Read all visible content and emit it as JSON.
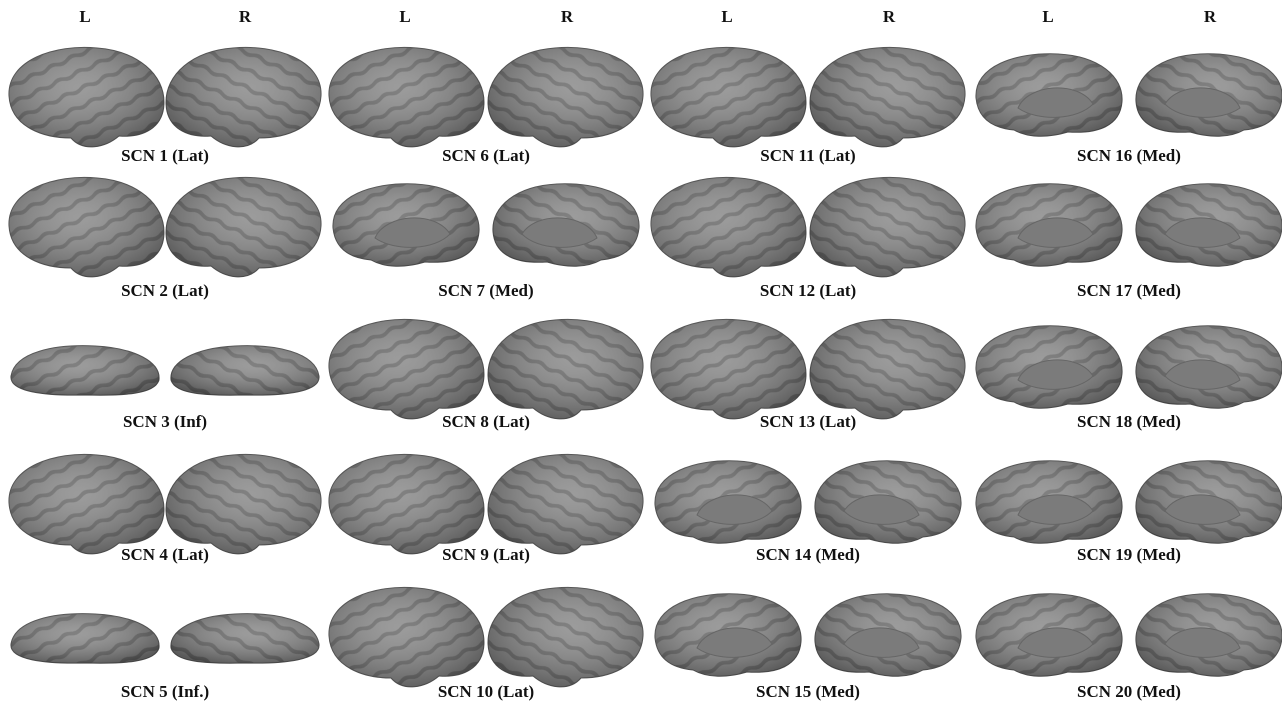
{
  "headers": [
    "L",
    "R",
    "L",
    "R",
    "L",
    "R",
    "L",
    "R"
  ],
  "panels": [
    {
      "label": "SCN 1 (Lat)"
    },
    {
      "label": "SCN 2 (Lat)"
    },
    {
      "label": "SCN 3 (Inf)"
    },
    {
      "label": "SCN 4 (Lat)"
    },
    {
      "label": "SCN 5 (Inf.)"
    },
    {
      "label": "SCN 6 (Lat)"
    },
    {
      "label": "SCN 7 (Med)"
    },
    {
      "label": "SCN 8 (Lat)"
    },
    {
      "label": "SCN 9 (Lat)"
    },
    {
      "label": "SCN 10 (Lat)"
    },
    {
      "label": "SCN 11 (Lat)"
    },
    {
      "label": "SCN 12 (Lat)"
    },
    {
      "label": "SCN 13 (Lat)"
    },
    {
      "label": "SCN 14 (Med)"
    },
    {
      "label": "SCN 15 (Med)"
    },
    {
      "label": "SCN 16 (Med)"
    },
    {
      "label": "SCN 17 (Med)"
    },
    {
      "label": "SCN 18 (Med)"
    },
    {
      "label": "SCN 19 (Med)"
    },
    {
      "label": "SCN 20 (Med)"
    }
  ]
}
